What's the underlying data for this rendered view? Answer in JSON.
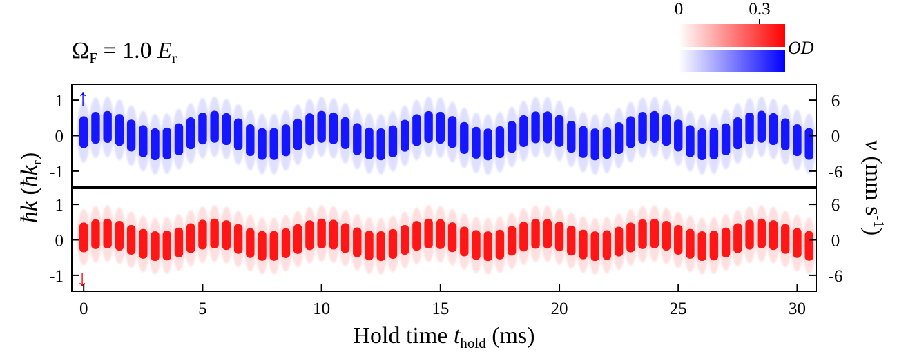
{
  "title": {
    "omega": "Ω",
    "sub": "F",
    "eq": " = 1.0 ",
    "E": "E",
    "rsub": "r"
  },
  "colorbar": {
    "tick_labels": [
      "0",
      "0.3"
    ],
    "label": "OD",
    "colors": {
      "up": "#0000ff",
      "down": "#ff0000"
    }
  },
  "chart_data": {
    "type": "heatmap",
    "x": {
      "label_main": "Hold time ",
      "label_italic": "t",
      "label_sub": "hold",
      "label_unit": " (ms)",
      "range": [
        -0.5,
        30.8
      ],
      "ticks": [
        0,
        5,
        10,
        15,
        20,
        25,
        30
      ]
    },
    "y_left": {
      "label": "ħk (ħkr)",
      "range": [
        -1.45,
        1.45
      ],
      "ticks": [
        1,
        0,
        -1
      ],
      "tick_labels": [
        "1",
        "0",
        "-1"
      ]
    },
    "y_right": {
      "label": "v (mm s-1)",
      "ticks": [
        6,
        0,
        -6
      ],
      "tick_labels": [
        "6",
        "0",
        "-6"
      ]
    },
    "panels": [
      {
        "name": "spin-up",
        "marker": "↑",
        "color": "#0000ff",
        "pulse_period_ms": 0.5,
        "pulse_start_ms": 0.0,
        "pulse_end_ms": 30.5,
        "center_oscillation": {
          "amplitude": 0.25,
          "period_ms": 4.6,
          "offset": 0.0
        },
        "cloud_halfwidth": 0.45
      },
      {
        "name": "spin-down",
        "marker": "↓",
        "color": "#ff0000",
        "pulse_period_ms": 0.5,
        "pulse_start_ms": 0.0,
        "pulse_end_ms": 30.5,
        "center_oscillation": {
          "amplitude": 0.18,
          "period_ms": 4.6,
          "offset": 0.0
        },
        "cloud_halfwidth": 0.42
      }
    ]
  }
}
